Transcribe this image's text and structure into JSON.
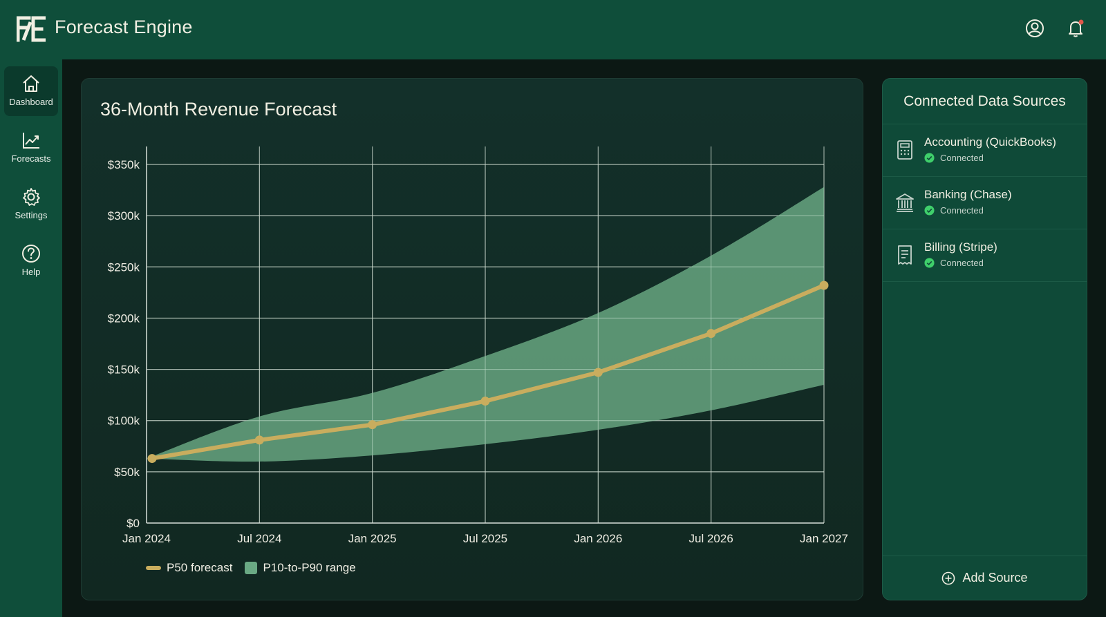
{
  "app": {
    "title": "Forecast Engine",
    "logo_icon": "fe-logo-icon"
  },
  "header": {
    "icons": [
      "user-account-icon",
      "notification-bell-icon"
    ],
    "accent": "#e0574a"
  },
  "sidebar": {
    "items": [
      {
        "label": "Dashboard",
        "icon": "home-icon",
        "active": true
      },
      {
        "label": "Forecasts",
        "icon": "chart-trend-icon",
        "active": false
      },
      {
        "label": "Settings",
        "icon": "gear-icon",
        "active": false
      },
      {
        "label": "Help",
        "icon": "help-icon",
        "active": false
      }
    ]
  },
  "chart_data": {
    "type": "line",
    "title": "36-Month Revenue Forecast",
    "x": [
      "Jan 2024",
      "Jul 2024",
      "Jan 2025",
      "Jul 2025",
      "Jan 2026",
      "Jul 2026",
      "Jan 2027"
    ],
    "y_tick_labels": [
      "$0",
      "$50k",
      "$100k",
      "$150k",
      "$200k",
      "$250k",
      "$300k",
      "$350k"
    ],
    "ylim": [
      0,
      350000
    ],
    "grid": true,
    "legend_position": "bottom-left",
    "series": [
      {
        "name": "P50 forecast",
        "kind": "line",
        "color": "#c9ad5e",
        "values": [
          63000,
          81000,
          96000,
          119000,
          147000,
          185000,
          232000
        ]
      },
      {
        "name": "P10-to-P90 range",
        "kind": "band",
        "color": "#6aa984",
        "lower": [
          63000,
          60000,
          66000,
          77000,
          91000,
          110000,
          135000
        ],
        "upper": [
          63000,
          104000,
          127000,
          163000,
          205000,
          261000,
          328000
        ]
      }
    ]
  },
  "sources": {
    "title": "Connected Data Sources",
    "items": [
      {
        "name": "Accounting (QuickBooks)",
        "status": "Connected",
        "icon": "calculator-icon"
      },
      {
        "name": "Banking (Chase)",
        "status": "Connected",
        "icon": "bank-icon"
      },
      {
        "name": "Billing (Stripe)",
        "status": "Connected",
        "icon": "receipt-icon"
      }
    ],
    "status_color": "#3fcf6b",
    "add_label": "Add Source"
  }
}
